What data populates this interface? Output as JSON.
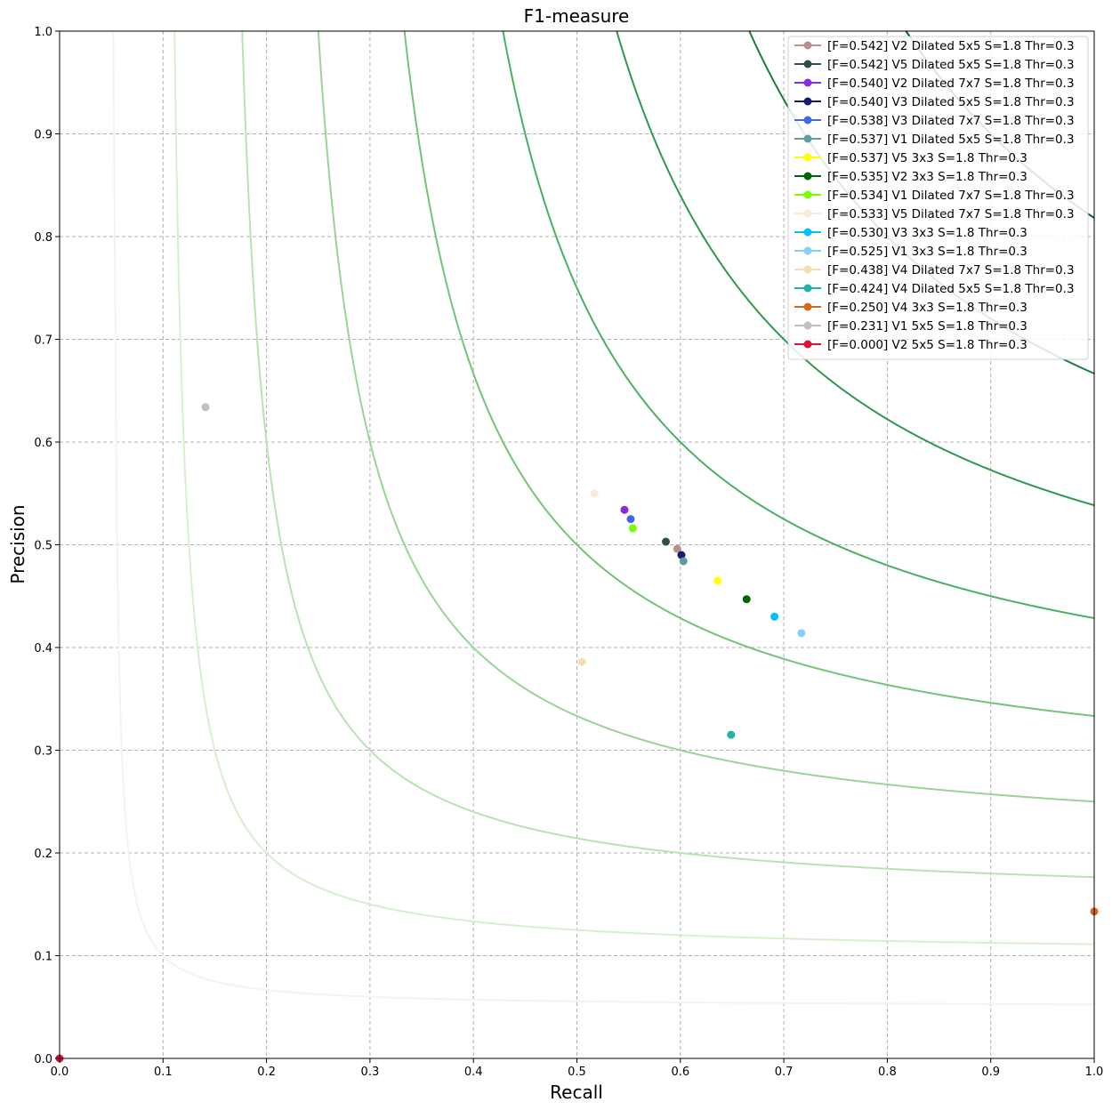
{
  "chart_data": {
    "type": "scatter",
    "title": "F1-measure",
    "xlabel": "Recall",
    "ylabel": "Precision",
    "xlim": [
      0,
      1
    ],
    "ylim": [
      0,
      1
    ],
    "xticks": [
      "0.0",
      "0.1",
      "0.2",
      "0.3",
      "0.4",
      "0.5",
      "0.6",
      "0.7",
      "0.8",
      "0.9",
      "1.0"
    ],
    "yticks": [
      "0.0",
      "0.1",
      "0.2",
      "0.3",
      "0.4",
      "0.5",
      "0.6",
      "0.7",
      "0.8",
      "0.9",
      "1.0"
    ],
    "grid": true,
    "legend_position": "top-right",
    "iso_f1_curves": [
      {
        "f": 0.1,
        "color": "#eef8ea"
      },
      {
        "f": 0.2,
        "color": "#d5efcf"
      },
      {
        "f": 0.3,
        "color": "#b8e3b2"
      },
      {
        "f": 0.4,
        "color": "#98d594"
      },
      {
        "f": 0.5,
        "color": "#73c476"
      },
      {
        "f": 0.6,
        "color": "#4bb062"
      },
      {
        "f": 0.7,
        "color": "#2f984f"
      },
      {
        "f": 0.8,
        "color": "#157f3b"
      },
      {
        "f": 0.9,
        "color": "#006428"
      }
    ],
    "series": [
      {
        "name": "[F=0.542] V2 Dilated 5x5 S=1.8 Thr=0.3",
        "color": "#bc8f8f",
        "x": 0.597,
        "y": 0.496
      },
      {
        "name": "[F=0.542] V5 Dilated 5x5 S=1.8 Thr=0.3",
        "color": "#2f4f4f",
        "x": 0.586,
        "y": 0.503
      },
      {
        "name": "[F=0.540] V2 Dilated 7x7 S=1.8 Thr=0.3",
        "color": "#8a2be2",
        "x": 0.546,
        "y": 0.534
      },
      {
        "name": "[F=0.540] V3 Dilated 5x5 S=1.8 Thr=0.3",
        "color": "#191970",
        "x": 0.601,
        "y": 0.49
      },
      {
        "name": "[F=0.538] V3 Dilated 7x7 S=1.8 Thr=0.3",
        "color": "#4169e1",
        "x": 0.552,
        "y": 0.525
      },
      {
        "name": "[F=0.537] V1 Dilated 5x5 S=1.8 Thr=0.3",
        "color": "#5f9ea0",
        "x": 0.603,
        "y": 0.484
      },
      {
        "name": "[F=0.537] V5 3x3 S=1.8 Thr=0.3",
        "color": "#ffff00",
        "x": 0.636,
        "y": 0.465
      },
      {
        "name": "[F=0.535] V2 3x3 S=1.8 Thr=0.3",
        "color": "#006400",
        "x": 0.664,
        "y": 0.447
      },
      {
        "name": "[F=0.534] V1 Dilated 7x7 S=1.8 Thr=0.3",
        "color": "#7cfc00",
        "x": 0.554,
        "y": 0.516
      },
      {
        "name": "[F=0.533] V5 Dilated 7x7 S=1.8 Thr=0.3",
        "color": "#faebd7",
        "x": 0.517,
        "y": 0.55
      },
      {
        "name": "[F=0.530] V3 3x3 S=1.8 Thr=0.3",
        "color": "#00bfff",
        "x": 0.691,
        "y": 0.43
      },
      {
        "name": "[F=0.525] V1 3x3 S=1.8 Thr=0.3",
        "color": "#87cefa",
        "x": 0.717,
        "y": 0.414
      },
      {
        "name": "[F=0.438] V4 Dilated 7x7 S=1.8 Thr=0.3",
        "color": "#f5deb3",
        "x": 0.505,
        "y": 0.386
      },
      {
        "name": "[F=0.424] V4 Dilated 5x5 S=1.8 Thr=0.3",
        "color": "#20b2aa",
        "x": 0.649,
        "y": 0.315
      },
      {
        "name": "[F=0.250] V4 3x3 S=1.8 Thr=0.3",
        "color": "#d2691e",
        "x": 1.0,
        "y": 0.143
      },
      {
        "name": "[F=0.231] V1 5x5 S=1.8 Thr=0.3",
        "color": "#c0c0c0",
        "x": 0.141,
        "y": 0.634
      },
      {
        "name": "[F=0.000] V2 5x5 S=1.8 Thr=0.3",
        "color": "#dc143c",
        "x": 0.0,
        "y": 0.0
      }
    ]
  }
}
